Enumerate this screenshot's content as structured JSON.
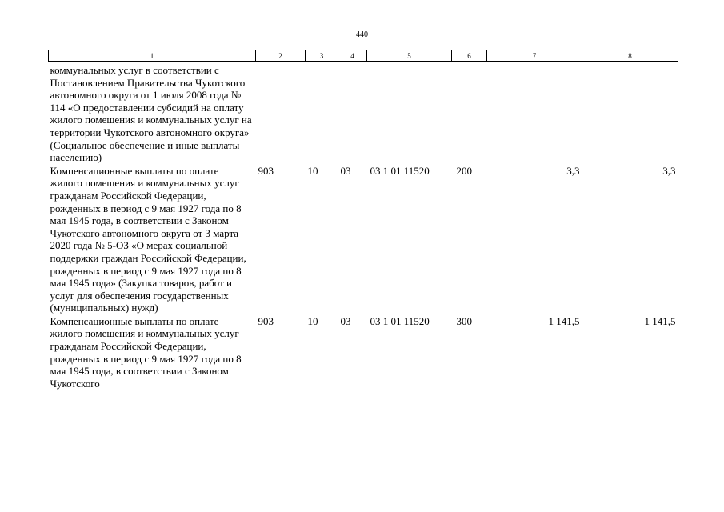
{
  "page_number": "440",
  "table": {
    "header": [
      "1",
      "2",
      "3",
      "4",
      "5",
      "6",
      "7",
      "8"
    ],
    "rows": [
      {
        "name": "коммунальных услуг в соответствии с Постановлением Правительства Чукотского автономного округа от 1 июля 2008 года № 114 «О предоставлении субсидий на оплату жилого помещения и коммунальных услуг на территории Чукотского автономного округа» (Социальное обеспечение и иные выплаты населению)",
        "grbs": "",
        "rz": "",
        "pr": "",
        "csr": "",
        "vr": "",
        "sum_2022": "",
        "sum_2023": ""
      },
      {
        "name": "Компенсационные выплаты по оплате жилого помещения и коммунальных услуг гражданам Российской Федерации, рожденных в период с 9 мая 1927 года по 8 мая 1945 года, в соответствии с Законом Чукотского автономного округа от 3 марта 2020 года № 5-ОЗ «О мерах социальной поддержки граждан Российской Федерации, рожденных в период с 9 мая 1927 года по 8 мая 1945 года» (Закупка товаров, работ и услуг для обеспечения государственных (муниципальных) нужд)",
        "grbs": "903",
        "rz": "10",
        "pr": "03",
        "csr": "03 1 01 11520",
        "vr": "200",
        "sum_2022": "3,3",
        "sum_2023": "3,3"
      },
      {
        "name": "Компенсационные выплаты по оплате жилого помещения и коммунальных услуг гражданам Российской Федерации, рожденных в период с 9 мая 1927 года по 8 мая 1945 года, в соответствии с Законом Чукотского",
        "grbs": "903",
        "rz": "10",
        "pr": "03",
        "csr": "03 1 01 11520",
        "vr": "300",
        "sum_2022": "1 141,5",
        "sum_2023": "1 141,5"
      }
    ]
  }
}
